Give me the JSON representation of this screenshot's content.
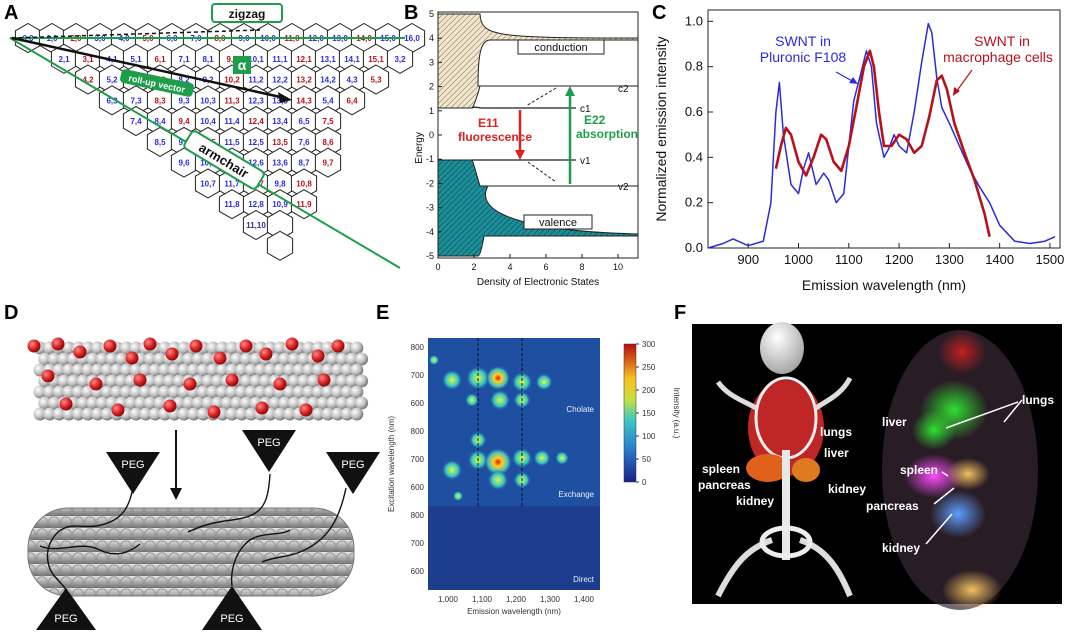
{
  "colors": {
    "blue": "#2b2bdc",
    "red": "#b5121b",
    "green": "#1e9e4a",
    "navy": "#2a2f8f"
  },
  "panels": {
    "A": {
      "label": "A",
      "zigzag": "zigzag",
      "armchair": "armchair",
      "alpha": "α",
      "rollup": "roll-up vector",
      "indices": [
        {
          "t": "0,0",
          "c": "blue"
        },
        {
          "t": "1,0",
          "c": "blue"
        },
        {
          "t": "2,0",
          "c": "red"
        },
        {
          "t": "3,0",
          "c": "blue"
        },
        {
          "t": "4,0",
          "c": "blue"
        },
        {
          "t": "5,0",
          "c": "red"
        },
        {
          "t": "6,0",
          "c": "blue"
        },
        {
          "t": "7,0",
          "c": "blue"
        },
        {
          "t": "8,0",
          "c": "red"
        },
        {
          "t": "9,0",
          "c": "blue"
        },
        {
          "t": "10,0",
          "c": "blue"
        },
        {
          "t": "11,0",
          "c": "red"
        },
        {
          "t": "12,0",
          "c": "blue"
        },
        {
          "t": "13,0",
          "c": "blue"
        },
        {
          "t": "14,0",
          "c": "red"
        },
        {
          "t": "15,0",
          "c": "blue"
        },
        {
          "t": "16,0",
          "c": "blue"
        },
        {
          "t": "2,1",
          "c": "blue"
        },
        {
          "t": "3,1",
          "c": "red"
        },
        {
          "t": "4,1",
          "c": "blue"
        },
        {
          "t": "5,1",
          "c": "blue"
        },
        {
          "t": "6,1",
          "c": "red"
        },
        {
          "t": "7,1",
          "c": "blue"
        },
        {
          "t": "8,1",
          "c": "blue"
        },
        {
          "t": "9,1",
          "c": "red"
        },
        {
          "t": "10,1",
          "c": "blue"
        },
        {
          "t": "11,1",
          "c": "blue"
        },
        {
          "t": "12,1",
          "c": "red"
        },
        {
          "t": "13,1",
          "c": "blue"
        },
        {
          "t": "14,1",
          "c": "blue"
        },
        {
          "t": "15,1",
          "c": "red"
        },
        {
          "t": "3,2",
          "c": "blue"
        },
        {
          "t": "4,2",
          "c": "red"
        },
        {
          "t": "5,2",
          "c": "blue"
        },
        {
          "t": "6,2",
          "c": "blue"
        },
        {
          "t": "7,2",
          "c": "red"
        },
        {
          "t": "8,2",
          "c": "blue"
        },
        {
          "t": "9,2",
          "c": "blue"
        },
        {
          "t": "10,2",
          "c": "red"
        },
        {
          "t": "11,2",
          "c": "blue"
        },
        {
          "t": "12,2",
          "c": "blue"
        },
        {
          "t": "13,2",
          "c": "red"
        },
        {
          "t": "14,2",
          "c": "blue"
        },
        {
          "t": "4,3",
          "c": "blue"
        },
        {
          "t": "5,3",
          "c": "red"
        },
        {
          "t": "6,3",
          "c": "blue"
        },
        {
          "t": "7,3",
          "c": "blue"
        },
        {
          "t": "8,3",
          "c": "red"
        },
        {
          "t": "9,3",
          "c": "blue"
        },
        {
          "t": "10,3",
          "c": "blue"
        },
        {
          "t": "11,3",
          "c": "red"
        },
        {
          "t": "12,3",
          "c": "blue"
        },
        {
          "t": "13,3",
          "c": "blue"
        },
        {
          "t": "14,3",
          "c": "red"
        },
        {
          "t": "5,4",
          "c": "blue"
        },
        {
          "t": "6,4",
          "c": "red"
        },
        {
          "t": "7,4",
          "c": "blue"
        },
        {
          "t": "8,4",
          "c": "blue"
        },
        {
          "t": "9,4",
          "c": "red"
        },
        {
          "t": "10,4",
          "c": "blue"
        },
        {
          "t": "11,4",
          "c": "blue"
        },
        {
          "t": "12,4",
          "c": "red"
        },
        {
          "t": "13,4",
          "c": "blue"
        },
        {
          "t": "6,5",
          "c": "blue"
        },
        {
          "t": "7,5",
          "c": "red"
        },
        {
          "t": "8,5",
          "c": "blue"
        },
        {
          "t": "9,5",
          "c": "blue"
        },
        {
          "t": "10,5",
          "c": "red"
        },
        {
          "t": "11,5",
          "c": "blue"
        },
        {
          "t": "12,5",
          "c": "blue"
        },
        {
          "t": "13,5",
          "c": "red"
        },
        {
          "t": "7,6",
          "c": "blue"
        },
        {
          "t": "8,6",
          "c": "red"
        },
        {
          "t": "9,6",
          "c": "blue"
        },
        {
          "t": "10,6",
          "c": "blue"
        },
        {
          "t": "11,6",
          "c": "red"
        },
        {
          "t": "12,6",
          "c": "blue"
        },
        {
          "t": "13,6",
          "c": "blue"
        },
        {
          "t": "8,7",
          "c": "blue"
        },
        {
          "t": "9,7",
          "c": "red"
        },
        {
          "t": "10,7",
          "c": "blue"
        },
        {
          "t": "11,7",
          "c": "blue"
        },
        {
          "t": "12,7",
          "c": "red"
        },
        {
          "t": "9,8",
          "c": "blue"
        },
        {
          "t": "10,8",
          "c": "red"
        },
        {
          "t": "11,8",
          "c": "blue"
        },
        {
          "t": "12,8",
          "c": "blue"
        },
        {
          "t": "10,9",
          "c": "blue"
        },
        {
          "t": "11,9",
          "c": "red"
        },
        {
          "t": "11,10",
          "c": "navy"
        }
      ]
    },
    "B": {
      "label": "B",
      "ylabel": "Energy",
      "xlabel": "Density of Electronic States",
      "xticks": [
        "0",
        "2",
        "4",
        "6",
        "8",
        "10"
      ],
      "yticks": [
        "-5",
        "-4",
        "-3",
        "-2",
        "-1",
        "0",
        "1",
        "2",
        "3",
        "4",
        "5"
      ],
      "conduction": "conduction",
      "valence": "valence",
      "c1": "c1",
      "c2": "c2",
      "v1": "v1",
      "v2": "v2",
      "e11": "E11",
      "fluor": "fluorescence",
      "e22": "E22",
      "absorb": "absorption"
    },
    "C": {
      "label": "C",
      "legend_blue_1": "SWNT in",
      "legend_blue_2": "Pluronic F108",
      "legend_red_1": "SWNT in",
      "legend_red_2": "macrophage cells"
    },
    "D": {
      "label": "D",
      "peg": "PEG"
    },
    "E": {
      "label": "E",
      "cholate": "Cholate",
      "exchange": "Exchange",
      "direct": "Direct",
      "xlabel": "Emission wavelength (nm)",
      "ylabel": "Excitation wavelength (nm)",
      "cbar_label": "Intensity (a.u.)",
      "cbar_ticks": [
        "0",
        "50",
        "100",
        "150",
        "200",
        "250",
        "300"
      ],
      "xticks": [
        "1,000",
        "1,100",
        "1,200",
        "1,300",
        "1,400"
      ],
      "yticks_top": [
        "800",
        "700",
        "600"
      ],
      "yticks_mid": [
        "800",
        "700",
        "600"
      ],
      "yticks_bot": [
        "800",
        "700",
        "600"
      ]
    },
    "F": {
      "label": "F",
      "l_lungs": "lungs",
      "l_liver": "liver",
      "l_spleen": "spleen",
      "l_pancreas": "pancreas",
      "l_kidney": "kidney",
      "r_liver": "liver",
      "r_lungs": "lungs",
      "r_spleen": "spleen",
      "r_pancreas": "pancreas",
      "r_kidney": "kidney",
      "r_kidney_mid": "kidney"
    }
  },
  "chart_data": {
    "type": "line",
    "title": "",
    "xlabel": "Emission wavelength  (nm)",
    "ylabel": "Normalized emission intensity",
    "xlim": [
      820,
      1520
    ],
    "ylim": [
      0,
      1.05
    ],
    "xticks": [
      900,
      1000,
      1100,
      1200,
      1300,
      1400,
      1500
    ],
    "yticks": [
      0.0,
      0.2,
      0.4,
      0.6,
      0.8,
      1.0
    ],
    "series": [
      {
        "name": "SWNT in Pluronic F108",
        "color": "#2b2bdc",
        "x": [
          820,
          850,
          870,
          900,
          930,
          945,
          955,
          962,
          970,
          985,
          1000,
          1010,
          1020,
          1035,
          1050,
          1060,
          1075,
          1090,
          1100,
          1110,
          1125,
          1135,
          1145,
          1155,
          1170,
          1180,
          1190,
          1200,
          1215,
          1230,
          1245,
          1258,
          1265,
          1275,
          1285,
          1300,
          1320,
          1340,
          1360,
          1380,
          1400,
          1430,
          1460,
          1490,
          1510
        ],
        "y": [
          0.0,
          0.02,
          0.04,
          0.01,
          0.03,
          0.2,
          0.6,
          0.73,
          0.5,
          0.28,
          0.24,
          0.35,
          0.42,
          0.28,
          0.33,
          0.3,
          0.2,
          0.24,
          0.45,
          0.65,
          0.78,
          0.87,
          0.8,
          0.55,
          0.4,
          0.44,
          0.5,
          0.45,
          0.42,
          0.6,
          0.82,
          0.99,
          0.95,
          0.75,
          0.62,
          0.55,
          0.45,
          0.35,
          0.27,
          0.2,
          0.1,
          0.03,
          0.02,
          0.03,
          0.05
        ]
      },
      {
        "name": "SWNT in macrophage cells",
        "color": "#b5121b",
        "x": [
          955,
          965,
          975,
          985,
          1000,
          1015,
          1030,
          1045,
          1055,
          1070,
          1085,
          1100,
          1115,
          1130,
          1142,
          1150,
          1160,
          1170,
          1185,
          1200,
          1215,
          1230,
          1245,
          1260,
          1275,
          1285,
          1295,
          1310,
          1330,
          1350,
          1370,
          1380
        ],
        "y": [
          0.35,
          0.45,
          0.53,
          0.5,
          0.38,
          0.32,
          0.4,
          0.5,
          0.48,
          0.38,
          0.34,
          0.45,
          0.62,
          0.8,
          0.87,
          0.8,
          0.6,
          0.45,
          0.45,
          0.5,
          0.48,
          0.42,
          0.45,
          0.58,
          0.74,
          0.76,
          0.7,
          0.55,
          0.42,
          0.3,
          0.15,
          0.05
        ]
      }
    ]
  }
}
